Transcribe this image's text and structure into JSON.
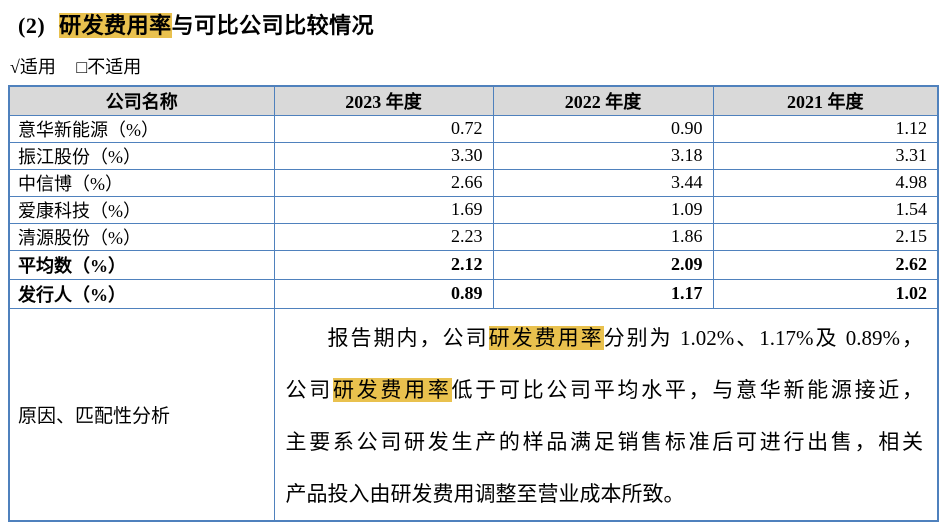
{
  "title": {
    "number": "(2)",
    "segments": [
      {
        "text": "研发费用率",
        "highlight": true
      },
      {
        "text": "与可比公司比较情况",
        "highlight": false
      }
    ]
  },
  "applicability": {
    "applicable": "√适用",
    "not_applicable": "□不适用"
  },
  "table": {
    "headers": [
      "公司名称",
      "2023 年度",
      "2022 年度",
      "2021 年度"
    ],
    "rows": [
      {
        "name": "意华新能源（%）",
        "values": [
          "0.72",
          "0.90",
          "1.12"
        ]
      },
      {
        "name": "振江股份（%）",
        "values": [
          "3.30",
          "3.18",
          "3.31"
        ]
      },
      {
        "name": "中信博（%）",
        "values": [
          "2.66",
          "3.44",
          "4.98"
        ]
      },
      {
        "name": "爱康科技（%）",
        "values": [
          "1.69",
          "1.09",
          "1.54"
        ]
      },
      {
        "name": "清源股份（%）",
        "values": [
          "2.23",
          "1.86",
          "2.15"
        ]
      },
      {
        "name": "平均数（%）",
        "values": [
          "2.12",
          "2.09",
          "2.62"
        ]
      },
      {
        "name": "发行人（%）",
        "values": [
          "0.89",
          "1.17",
          "1.02"
        ]
      }
    ],
    "analysis": {
      "label": "原因、匹配性分析",
      "lines": [
        [
          {
            "text": "报告期内，公司",
            "highlight": false
          },
          {
            "text": "研发费用率",
            "highlight": true
          },
          {
            "text": "分别为 1.02%、1.17%及 0.89%，",
            "highlight": false
          }
        ],
        [
          {
            "text": "公司",
            "highlight": false
          },
          {
            "text": "研发费用率",
            "highlight": true
          },
          {
            "text": "低于可比公司平均水平，与意华新能源接近，",
            "highlight": false
          }
        ],
        [
          {
            "text": "主要系公司研发生产的样品满足销售标准后可进行出售，相关",
            "highlight": false
          }
        ],
        [
          {
            "text": "产品投入由研发费用调整至营业成本所致。",
            "highlight": false
          }
        ]
      ]
    }
  },
  "colors": {
    "table_border": "#4F81BD",
    "header_background": "#D9D9D9",
    "highlight": "#E9C14E"
  }
}
